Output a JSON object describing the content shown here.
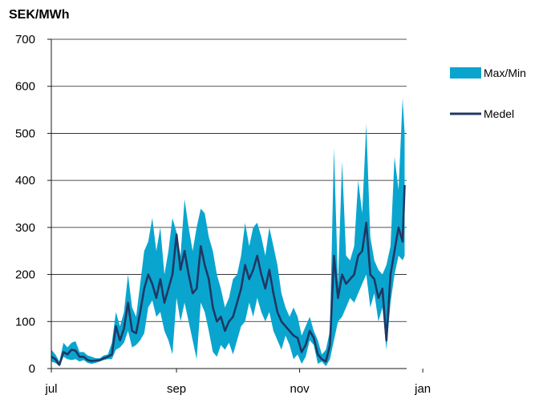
{
  "chart_data": {
    "type": "area",
    "ylabel": "SEK/MWh",
    "xlabel": "",
    "ylim": [
      0,
      700
    ],
    "yticks": [
      0,
      100,
      200,
      300,
      400,
      500,
      600,
      700
    ],
    "xticks": [
      {
        "label": "jul",
        "day": 0
      },
      {
        "label": "sep",
        "day": 62
      },
      {
        "label": "nov",
        "day": 123
      },
      {
        "label": "jan",
        "day": 184
      }
    ],
    "grid": true,
    "legend_position": "right",
    "series": [
      {
        "name": "Max/Min",
        "kind": "band",
        "color": "#0aa5cf",
        "points": [
          [
            0,
            15,
            40
          ],
          [
            2,
            12,
            30
          ],
          [
            4,
            5,
            15
          ],
          [
            6,
            25,
            55
          ],
          [
            8,
            20,
            45
          ],
          [
            10,
            18,
            55
          ],
          [
            12,
            20,
            58
          ],
          [
            14,
            15,
            35
          ],
          [
            16,
            18,
            35
          ],
          [
            18,
            12,
            28
          ],
          [
            20,
            10,
            25
          ],
          [
            22,
            12,
            22
          ],
          [
            24,
            15,
            22
          ],
          [
            26,
            18,
            28
          ],
          [
            28,
            20,
            30
          ],
          [
            30,
            20,
            55
          ],
          [
            32,
            40,
            120
          ],
          [
            34,
            45,
            90
          ],
          [
            36,
            55,
            120
          ],
          [
            38,
            80,
            200
          ],
          [
            40,
            45,
            130
          ],
          [
            42,
            50,
            110
          ],
          [
            44,
            60,
            180
          ],
          [
            46,
            75,
            250
          ],
          [
            48,
            130,
            270
          ],
          [
            50,
            145,
            320
          ],
          [
            52,
            110,
            250
          ],
          [
            54,
            120,
            300
          ],
          [
            56,
            80,
            200
          ],
          [
            58,
            60,
            250
          ],
          [
            60,
            30,
            320
          ],
          [
            62,
            150,
            290
          ],
          [
            64,
            100,
            240
          ],
          [
            66,
            140,
            360
          ],
          [
            68,
            100,
            300
          ],
          [
            70,
            60,
            250
          ],
          [
            72,
            20,
            300
          ],
          [
            74,
            140,
            340
          ],
          [
            76,
            120,
            330
          ],
          [
            78,
            80,
            280
          ],
          [
            80,
            35,
            250
          ],
          [
            82,
            25,
            200
          ],
          [
            84,
            50,
            170
          ],
          [
            86,
            40,
            130
          ],
          [
            88,
            55,
            150
          ],
          [
            90,
            30,
            190
          ],
          [
            92,
            60,
            200
          ],
          [
            94,
            90,
            240
          ],
          [
            96,
            100,
            310
          ],
          [
            98,
            140,
            260
          ],
          [
            100,
            110,
            300
          ],
          [
            102,
            150,
            310
          ],
          [
            104,
            120,
            280
          ],
          [
            106,
            100,
            240
          ],
          [
            108,
            120,
            300
          ],
          [
            110,
            80,
            260
          ],
          [
            112,
            60,
            220
          ],
          [
            114,
            40,
            160
          ],
          [
            116,
            70,
            130
          ],
          [
            118,
            50,
            110
          ],
          [
            120,
            20,
            130
          ],
          [
            122,
            30,
            110
          ],
          [
            124,
            10,
            70
          ],
          [
            126,
            25,
            90
          ],
          [
            128,
            60,
            110
          ],
          [
            130,
            50,
            80
          ],
          [
            132,
            10,
            60
          ],
          [
            134,
            15,
            30
          ],
          [
            136,
            5,
            40
          ],
          [
            138,
            20,
            80
          ],
          [
            140,
            60,
            470
          ],
          [
            142,
            100,
            180
          ],
          [
            144,
            110,
            440
          ],
          [
            146,
            130,
            240
          ],
          [
            148,
            150,
            230
          ],
          [
            150,
            140,
            260
          ],
          [
            152,
            160,
            400
          ],
          [
            154,
            180,
            330
          ],
          [
            156,
            200,
            520
          ],
          [
            158,
            130,
            280
          ],
          [
            160,
            160,
            230
          ],
          [
            162,
            100,
            210
          ],
          [
            164,
            130,
            200
          ],
          [
            166,
            40,
            220
          ],
          [
            168,
            140,
            260
          ],
          [
            170,
            200,
            450
          ],
          [
            172,
            240,
            380
          ],
          [
            174,
            230,
            575
          ],
          [
            175,
            240,
            500
          ]
        ]
      },
      {
        "name": "Medel",
        "kind": "line",
        "color": "#1f3864",
        "points": [
          [
            0,
            25
          ],
          [
            2,
            20
          ],
          [
            4,
            8
          ],
          [
            6,
            35
          ],
          [
            8,
            30
          ],
          [
            10,
            40
          ],
          [
            12,
            38
          ],
          [
            14,
            25
          ],
          [
            16,
            25
          ],
          [
            18,
            18
          ],
          [
            20,
            16
          ],
          [
            22,
            17
          ],
          [
            24,
            18
          ],
          [
            26,
            22
          ],
          [
            28,
            25
          ],
          [
            30,
            30
          ],
          [
            32,
            90
          ],
          [
            34,
            60
          ],
          [
            36,
            85
          ],
          [
            38,
            140
          ],
          [
            40,
            80
          ],
          [
            42,
            75
          ],
          [
            44,
            120
          ],
          [
            46,
            170
          ],
          [
            48,
            200
          ],
          [
            50,
            180
          ],
          [
            52,
            150
          ],
          [
            54,
            190
          ],
          [
            56,
            140
          ],
          [
            58,
            170
          ],
          [
            60,
            200
          ],
          [
            62,
            285
          ],
          [
            64,
            210
          ],
          [
            66,
            250
          ],
          [
            68,
            200
          ],
          [
            70,
            160
          ],
          [
            72,
            170
          ],
          [
            74,
            260
          ],
          [
            76,
            220
          ],
          [
            78,
            190
          ],
          [
            80,
            130
          ],
          [
            82,
            100
          ],
          [
            84,
            110
          ],
          [
            86,
            80
          ],
          [
            88,
            100
          ],
          [
            90,
            110
          ],
          [
            92,
            140
          ],
          [
            94,
            170
          ],
          [
            96,
            220
          ],
          [
            98,
            190
          ],
          [
            100,
            210
          ],
          [
            102,
            240
          ],
          [
            104,
            200
          ],
          [
            106,
            170
          ],
          [
            108,
            210
          ],
          [
            110,
            160
          ],
          [
            112,
            120
          ],
          [
            114,
            100
          ],
          [
            116,
            90
          ],
          [
            118,
            80
          ],
          [
            120,
            70
          ],
          [
            122,
            65
          ],
          [
            124,
            35
          ],
          [
            126,
            50
          ],
          [
            128,
            80
          ],
          [
            130,
            65
          ],
          [
            132,
            30
          ],
          [
            134,
            20
          ],
          [
            136,
            15
          ],
          [
            138,
            50
          ],
          [
            140,
            240
          ],
          [
            142,
            150
          ],
          [
            144,
            200
          ],
          [
            146,
            180
          ],
          [
            148,
            190
          ],
          [
            150,
            200
          ],
          [
            152,
            240
          ],
          [
            154,
            250
          ],
          [
            156,
            310
          ],
          [
            158,
            200
          ],
          [
            160,
            190
          ],
          [
            162,
            150
          ],
          [
            164,
            170
          ],
          [
            166,
            60
          ],
          [
            168,
            200
          ],
          [
            170,
            250
          ],
          [
            172,
            300
          ],
          [
            174,
            270
          ],
          [
            175,
            390
          ]
        ]
      }
    ]
  }
}
